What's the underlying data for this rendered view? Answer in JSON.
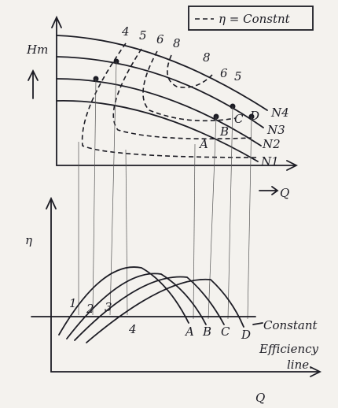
{
  "legend": "η = Constnt",
  "top_plot": {
    "y_label": "Hm",
    "x_label": "Q",
    "efficiency_labels": [
      "4",
      "5",
      "6",
      "8",
      "8",
      "6",
      "5"
    ],
    "curve_labels": [
      "N4",
      "N3",
      "N2",
      "N1"
    ],
    "points": [
      "A",
      "B",
      "C",
      "D"
    ]
  },
  "bottom_plot": {
    "y_label": "η",
    "x_label": "Q",
    "curve_labels": [
      "1",
      "2",
      "3",
      "4"
    ],
    "points": [
      "A",
      "B",
      "C",
      "D"
    ],
    "annotation": [
      "Constant",
      "Efficiency",
      "line."
    ]
  }
}
